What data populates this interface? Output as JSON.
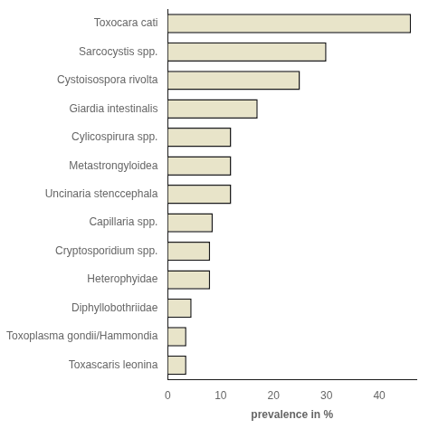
{
  "chart_data": {
    "type": "bar",
    "orientation": "horizontal",
    "categories": [
      "Toxascaris leonina",
      "Toxoplasma gondii/Hammondia",
      "Diphyllobothriidae",
      "Heterophyidae",
      "Cryptosporidium spp.",
      "Capillaria spp.",
      "Uncinaria stenccephala",
      "Metastrongyloidea",
      "Cylicospirura spp.",
      "Giardia intestinalis",
      "Cystoisospora rivolta",
      "Sarcocystis spp.",
      "Toxocara cati"
    ],
    "values": [
      3.5,
      3.5,
      4.5,
      8.0,
      8.0,
      8.5,
      12.0,
      12.0,
      12.0,
      17.0,
      25.0,
      30.0,
      46.0
    ],
    "color": "#e8e4c9",
    "xlabel": "prevalence in %",
    "xlim": [
      0,
      47
    ],
    "xticks": [
      0,
      10,
      20,
      30,
      40
    ],
    "grid": false
  }
}
